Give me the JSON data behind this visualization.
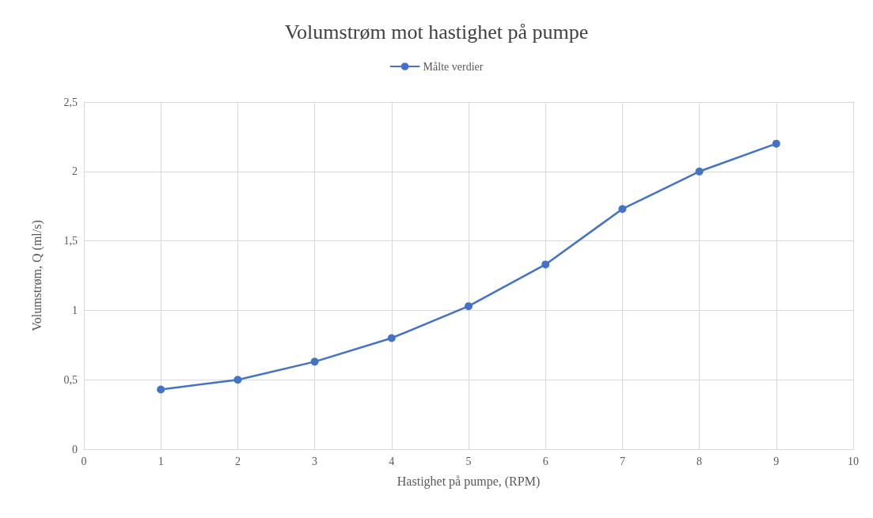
{
  "chart_data": {
    "type": "line",
    "title": "Volumstrøm mot hastighet på pumpe",
    "xlabel": "Hastighet på pumpe, (RPM)",
    "ylabel": "Volumstrøm, Q (ml/s)",
    "x": [
      1,
      2,
      3,
      4,
      5,
      6,
      7,
      8,
      9
    ],
    "series": [
      {
        "name": "Målte verdier",
        "color": "#4472c4",
        "values": [
          0.43,
          0.5,
          0.63,
          0.8,
          1.03,
          1.33,
          1.73,
          2.0,
          2.2
        ]
      }
    ],
    "xlim": [
      0,
      10
    ],
    "xticks": [
      0,
      1,
      2,
      3,
      4,
      5,
      6,
      7,
      8,
      9,
      10
    ],
    "ylim": [
      0,
      2.5
    ],
    "yticks": [
      0,
      {
        "value": 0.5,
        "label": "0,5"
      },
      1,
      {
        "value": 1.5,
        "label": "1,5"
      },
      2,
      {
        "value": 2.5,
        "label": "2,5"
      }
    ],
    "grid": true,
    "legend": "top",
    "marker": "circle",
    "line_style": "solid"
  }
}
